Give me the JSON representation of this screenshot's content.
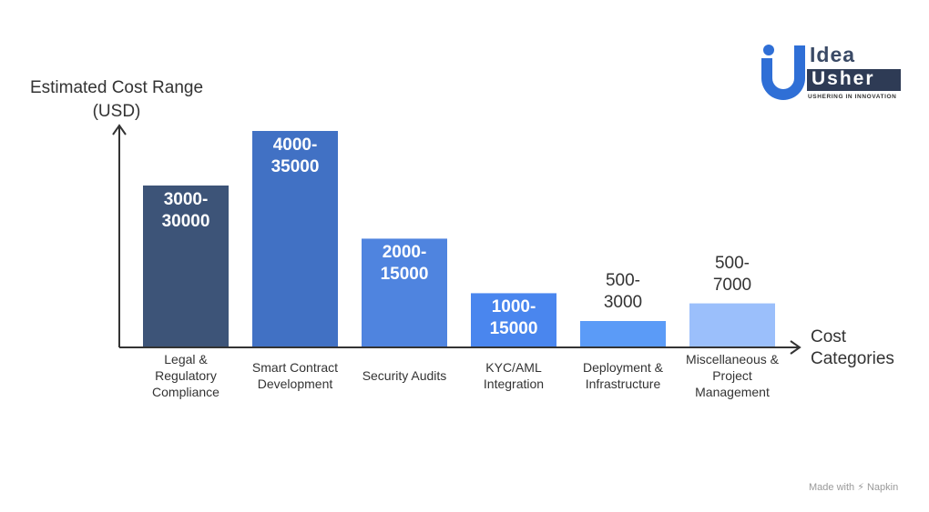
{
  "chart_data": {
    "type": "bar",
    "ylabel": "Estimated Cost Range (USD)",
    "xlabel": "Cost Categories",
    "categories": [
      "Legal & Regulatory Compliance",
      "Smart Contract Development",
      "Security Audits",
      "KYC/AML Integration",
      "Deployment & Infrastructure",
      "Miscellaneous & Project Management"
    ],
    "category_lines": [
      [
        "Legal &",
        "Regulatory",
        "Compliance"
      ],
      [
        "Smart Contract",
        "Development"
      ],
      [
        "Security Audits"
      ],
      [
        "KYC/AML",
        "Integration"
      ],
      [
        "Deployment &",
        "Infrastructure"
      ],
      [
        "Miscellaneous &",
        "Project",
        "Management"
      ]
    ],
    "ranges": [
      [
        3000,
        30000
      ],
      [
        4000,
        35000
      ],
      [
        2000,
        15000
      ],
      [
        1000,
        15000
      ],
      [
        500,
        3000
      ],
      [
        500,
        7000
      ]
    ],
    "labels": [
      [
        "3000-",
        "30000"
      ],
      [
        "4000-",
        "35000"
      ],
      [
        "2000-",
        "15000"
      ],
      [
        "1000-",
        "15000"
      ],
      [
        "500-",
        "3000"
      ],
      [
        "500-",
        "7000"
      ]
    ],
    "values": [
      30000,
      35000,
      15000,
      15000,
      3000,
      7000
    ],
    "colors": [
      "#3d5478",
      "#4171c4",
      "#4f84df",
      "#4a86ee",
      "#5b9bf7",
      "#9bbffb"
    ],
    "label_colors": [
      "#ffffff",
      "#ffffff",
      "#ffffff",
      "#ffffff",
      "#333333",
      "#333333"
    ],
    "grid": false,
    "legend": "none"
  },
  "logo": {
    "line1": "Idea",
    "line2": "Usher",
    "tagline": "USHERING IN INNOVATION"
  },
  "footer": "Made with ⚡ Napkin"
}
